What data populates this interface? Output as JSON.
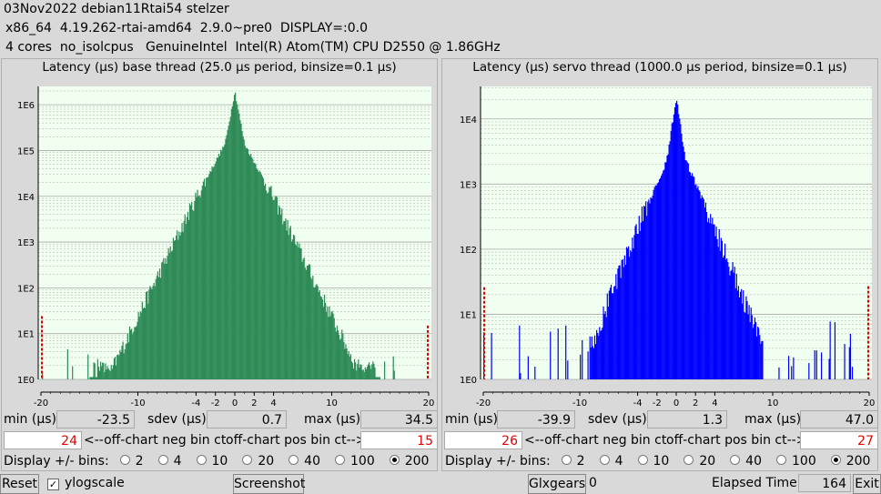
{
  "header": {
    "line1": "03Nov2022 debian11Rtai54 stelzer",
    "line2": "x86_64  4.19.262-rtai-amd64  2.9.0~pre0  DISPLAY=:0.0",
    "line3": "4 cores  no_isolcpus   GenuineIntel  Intel(R) Atom(TM) CPU D2550 @ 1.86GHz"
  },
  "colors": {
    "base_bars": "#2e8b57",
    "servo_bars": "#0000ff",
    "plot_bg": "#f0fff0",
    "grid": "#a9a9a9",
    "offchart": "#e00000"
  },
  "labels": {
    "min": "min (µs)",
    "sdev": "sdev (µs)",
    "max": "max (µs)",
    "neg": "<--off-chart neg bin ct",
    "pos": "off-chart pos bin ct-->",
    "bins": "Display +/- bins:"
  },
  "bins_options": [
    "2",
    "4",
    "10",
    "20",
    "40",
    "100",
    "200"
  ],
  "bins_selected": "200",
  "panels": [
    {
      "title": "Latency (µs) base thread (25.0 µs period, binsize=0.1 µs)",
      "min": "-23.5",
      "sdev": "0.7",
      "max": "34.5",
      "neg_count": "24",
      "pos_count": "15"
    },
    {
      "title": "Latency (µs) servo thread (1000.0 µs period, binsize=0.1 µs)",
      "min": "-39.9",
      "sdev": "1.3",
      "max": "47.0",
      "neg_count": "26",
      "pos_count": "27"
    }
  ],
  "footer": {
    "reset": "Reset",
    "ylogscale": "ylogscale",
    "ylogscale_checked": true,
    "screenshot": "Screenshot",
    "glxgears": "Glxgears",
    "glxgears_value": "0",
    "elapsed_label": "Elapsed Time:",
    "elapsed_value": "164",
    "exit": "Exit"
  },
  "chart_data": [
    {
      "type": "bar",
      "title": "Latency (µs) base thread (25.0 µs period, binsize=0.1 µs)",
      "yscale": "log",
      "x_ticks": [
        "-20",
        "-10",
        "-4",
        "-2",
        "0",
        "2",
        "4",
        "10",
        "20"
      ],
      "y_ticks": [
        "1E0",
        "1E1",
        "1E2",
        "1E3",
        "1E4",
        "1E5",
        "1E6"
      ],
      "xlim": [
        -20,
        20
      ],
      "ylim_log10": [
        0,
        6.4
      ],
      "peak_count": 2000000,
      "off_chart_neg": 24,
      "off_chart_pos": 15,
      "shape": {
        "center": 0,
        "decay_log10_per_us": 0.72,
        "tail_floor_log10": 0.15,
        "tail_extent_us": 15
      }
    },
    {
      "type": "bar",
      "title": "Latency (µs) servo thread (1000.0 µs period, binsize=0.1 µs)",
      "yscale": "log",
      "x_ticks": [
        "-20",
        "-10",
        "-4",
        "-2",
        "0",
        "2",
        "4",
        "10",
        "20"
      ],
      "y_ticks": [
        "1E0",
        "1E1",
        "1E2",
        "1E3",
        "1E4"
      ],
      "xlim": [
        -20,
        20
      ],
      "ylim_log10": [
        0,
        4.5
      ],
      "peak_count": 22000,
      "off_chart_neg": 26,
      "off_chart_pos": 27,
      "shape": {
        "center": 0,
        "decay_log10_per_us": 0.62,
        "tail_floor_log10": 0.0,
        "tail_extent_us": 9
      }
    }
  ]
}
